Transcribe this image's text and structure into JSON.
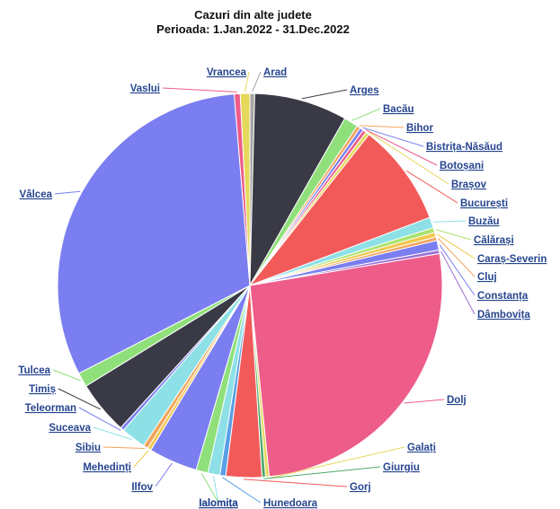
{
  "chart_data": {
    "type": "pie",
    "title": "Cazuri din alte judete",
    "subtitle": "Perioada: 1.Jan.2022 - 31.Dec.2022",
    "slices": [
      {
        "label": "Arad",
        "value": 0.4,
        "color": "#a5a5a5"
      },
      {
        "label": "Arges",
        "value": 7.8,
        "color": "#3a3a46"
      },
      {
        "label": "Bacău",
        "value": 1.2,
        "color": "#8fe07a"
      },
      {
        "label": "Bihor",
        "value": 0.3,
        "color": "#f2a45c"
      },
      {
        "label": "Bistrița-Năsăud",
        "value": 0.3,
        "color": "#7a7ef0"
      },
      {
        "label": "Botoșani",
        "value": 0.3,
        "color": "#ee5c8a"
      },
      {
        "label": "Brașov",
        "value": 0.3,
        "color": "#e6d85a"
      },
      {
        "label": "București",
        "value": 8.6,
        "color": "#f25a5a"
      },
      {
        "label": "Buzău",
        "value": 0.9,
        "color": "#8de0e6"
      },
      {
        "label": "Călărași",
        "value": 0.4,
        "color": "#a9e36d"
      },
      {
        "label": "Caraș-Severin",
        "value": 0.4,
        "color": "#f0c84d"
      },
      {
        "label": "Cluj",
        "value": 0.3,
        "color": "#f2a45c"
      },
      {
        "label": "Constanța",
        "value": 0.8,
        "color": "#7a7ef0"
      },
      {
        "label": "Dâmbovița",
        "value": 0.3,
        "color": "#9c6fd6"
      },
      {
        "label": "Dolj",
        "value": 26.0,
        "color": "#ee5c8a"
      },
      {
        "label": "Galați",
        "value": 0.3,
        "color": "#e6d85a"
      },
      {
        "label": "Giurgiu",
        "value": 0.3,
        "color": "#4fa86a"
      },
      {
        "label": "Gorj",
        "value": 3.0,
        "color": "#f25a5a"
      },
      {
        "label": "Hunedoara",
        "value": 0.5,
        "color": "#5aa0e6"
      },
      {
        "label": "Ialomita",
        "value": 1.0,
        "color": "#8de0e6"
      },
      {
        "label": "Ialomița",
        "value": 1.0,
        "color": "#8fe07a"
      },
      {
        "label": "Ilfov",
        "value": 4.1,
        "color": "#7a7ef0"
      },
      {
        "label": "Mehedinți",
        "value": 0.3,
        "color": "#f0c84d"
      },
      {
        "label": "Sibiu",
        "value": 0.4,
        "color": "#f2a45c"
      },
      {
        "label": "Suceava",
        "value": 2.1,
        "color": "#8de0e6"
      },
      {
        "label": "Teleorman",
        "value": 0.3,
        "color": "#7a7ef0"
      },
      {
        "label": "Timiș",
        "value": 4.5,
        "color": "#3a3a46"
      },
      {
        "label": "Tulcea",
        "value": 1.2,
        "color": "#8fe07a"
      },
      {
        "label": "Vâlcea",
        "value": 31.2,
        "color": "#7a7ef0"
      },
      {
        "label": "Vaslui",
        "value": 0.5,
        "color": "#ee5c8a"
      },
      {
        "label": "Vrancea",
        "value": 0.8,
        "color": "#e6d85a"
      }
    ],
    "label_color": "#26458f",
    "leader_color": "#555555"
  }
}
